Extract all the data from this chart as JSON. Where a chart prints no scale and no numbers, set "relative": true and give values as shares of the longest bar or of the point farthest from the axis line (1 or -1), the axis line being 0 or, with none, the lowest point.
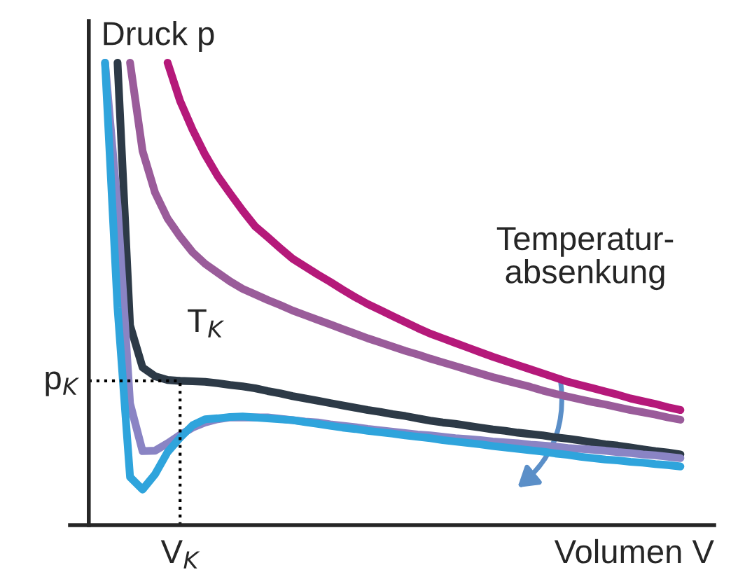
{
  "chart_data": {
    "type": "line",
    "relative": true,
    "xlabel": "Volumen V",
    "ylabel": "Druck p",
    "categories": [
      null,
      null,
      null,
      null,
      null,
      null,
      null,
      null,
      null,
      null,
      null,
      null,
      null,
      null,
      null,
      null,
      null,
      null,
      null,
      null,
      null,
      null,
      null,
      null,
      null,
      null,
      null,
      null,
      null,
      null,
      null,
      null,
      null,
      null,
      null,
      null,
      null,
      null,
      null,
      null,
      null,
      null,
      null,
      null,
      null,
      null,
      null
    ],
    "series": [
      {
        "color": "#b5197a",
        "values": [
          null,
          null,
          null,
          null,
          null,
          1.0,
          0.917,
          0.855,
          0.801,
          0.755,
          0.717,
          0.68,
          0.646,
          0.623,
          0.599,
          0.576,
          0.559,
          0.542,
          0.526,
          0.509,
          0.493,
          0.478,
          0.465,
          0.452,
          0.439,
          0.426,
          0.414,
          0.404,
          0.394,
          0.384,
          0.374,
          0.364,
          0.355,
          0.346,
          0.337,
          0.328,
          0.319,
          0.31,
          0.303,
          0.296,
          0.289,
          0.282,
          0.274,
          0.268,
          0.262,
          0.255,
          0.249
        ]
      },
      {
        "color": "#9a5c9a",
        "values": [
          null,
          null,
          1.0,
          0.809,
          0.719,
          0.663,
          0.624,
          0.59,
          0.565,
          0.546,
          0.527,
          0.511,
          0.499,
          0.487,
          0.476,
          0.464,
          0.454,
          0.444,
          0.434,
          0.424,
          0.414,
          0.404,
          0.395,
          0.386,
          0.377,
          0.369,
          0.36,
          0.352,
          0.344,
          0.336,
          0.328,
          0.32,
          0.313,
          0.306,
          0.299,
          0.291,
          0.284,
          0.278,
          0.272,
          0.266,
          0.261,
          0.255,
          0.249,
          0.244,
          0.239,
          0.233,
          0.228
        ]
      },
      {
        "color": "#2d3a47",
        "values": [
          null,
          1.0,
          0.432,
          0.341,
          0.322,
          0.314,
          0.312,
          0.311,
          0.31,
          0.307,
          0.303,
          0.3,
          0.296,
          0.29,
          0.285,
          0.279,
          0.274,
          0.269,
          0.264,
          0.259,
          0.254,
          0.249,
          0.245,
          0.24,
          0.236,
          0.231,
          0.226,
          0.222,
          0.219,
          0.215,
          0.211,
          0.207,
          0.204,
          0.2,
          0.197,
          0.194,
          0.19,
          0.187,
          0.183,
          0.179,
          0.175,
          0.172,
          0.168,
          0.164,
          0.16,
          0.157,
          0.153
        ]
      },
      {
        "color": "#8a84c4",
        "values": [
          1.0,
          0.69,
          0.263,
          0.16,
          0.161,
          0.177,
          0.195,
          0.211,
          0.222,
          0.229,
          0.233,
          0.233,
          0.233,
          0.233,
          0.23,
          0.227,
          0.224,
          0.222,
          0.218,
          0.215,
          0.212,
          0.208,
          0.205,
          0.202,
          0.199,
          0.196,
          0.194,
          0.191,
          0.188,
          0.186,
          0.184,
          0.181,
          0.179,
          0.177,
          0.174,
          0.172,
          0.17,
          0.167,
          0.165,
          0.163,
          0.161,
          0.158,
          0.156,
          0.153,
          0.151,
          0.148,
          0.145
        ]
      },
      {
        "color": "#2fa4dc",
        "values": [
          1.0,
          0.47,
          0.104,
          0.077,
          0.11,
          0.158,
          0.189,
          0.216,
          0.229,
          0.231,
          0.234,
          0.235,
          0.233,
          0.231,
          0.229,
          0.227,
          0.223,
          0.219,
          0.215,
          0.211,
          0.208,
          0.204,
          0.201,
          0.198,
          0.194,
          0.191,
          0.188,
          0.184,
          0.181,
          0.178,
          0.175,
          0.171,
          0.168,
          0.165,
          0.162,
          0.159,
          0.155,
          0.152,
          0.148,
          0.145,
          0.142,
          0.14,
          0.137,
          0.135,
          0.132,
          0.13,
          0.127
        ]
      }
    ],
    "ref_lines": [
      {
        "axis": "y",
        "value": 0.312,
        "label": "p$_{K}$",
        "line_style": "dotted",
        "color": "#000000"
      }
    ],
    "annotations": [
      "T$_{K}$",
      "Temperatur-\nabsenkung",
      "V$_{K}$"
    ]
  }
}
